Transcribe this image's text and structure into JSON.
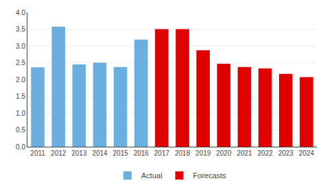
{
  "chart_data": {
    "type": "bar",
    "categories": [
      "2011",
      "2012",
      "2013",
      "2014",
      "2015",
      "2016",
      "2017",
      "2018",
      "2019",
      "2020",
      "2021",
      "2022",
      "2023",
      "2024"
    ],
    "series": [
      {
        "name": "Actual",
        "color": "#6aafe0",
        "values": [
          2.36,
          3.57,
          2.45,
          2.5,
          2.37,
          3.19,
          null,
          null,
          null,
          null,
          null,
          null,
          null,
          null
        ]
      },
      {
        "name": "Forecasts",
        "color": "#e00000",
        "values": [
          null,
          null,
          null,
          null,
          null,
          null,
          3.5,
          3.5,
          2.87,
          2.47,
          2.37,
          2.33,
          2.17,
          2.07
        ]
      }
    ],
    "ylim": [
      0,
      4.0
    ],
    "yticks": [
      {
        "value": 0,
        "label": "0.0"
      },
      0.5,
      {
        "value": 1.0,
        "label": "1.0"
      },
      1.5,
      {
        "value": 2.0,
        "label": "2.0"
      },
      2.5,
      {
        "value": 3.0,
        "label": "3.0"
      },
      3.5,
      {
        "value": 4.0,
        "label": "4.0"
      }
    ],
    "grid": true,
    "legend": "bottom"
  }
}
